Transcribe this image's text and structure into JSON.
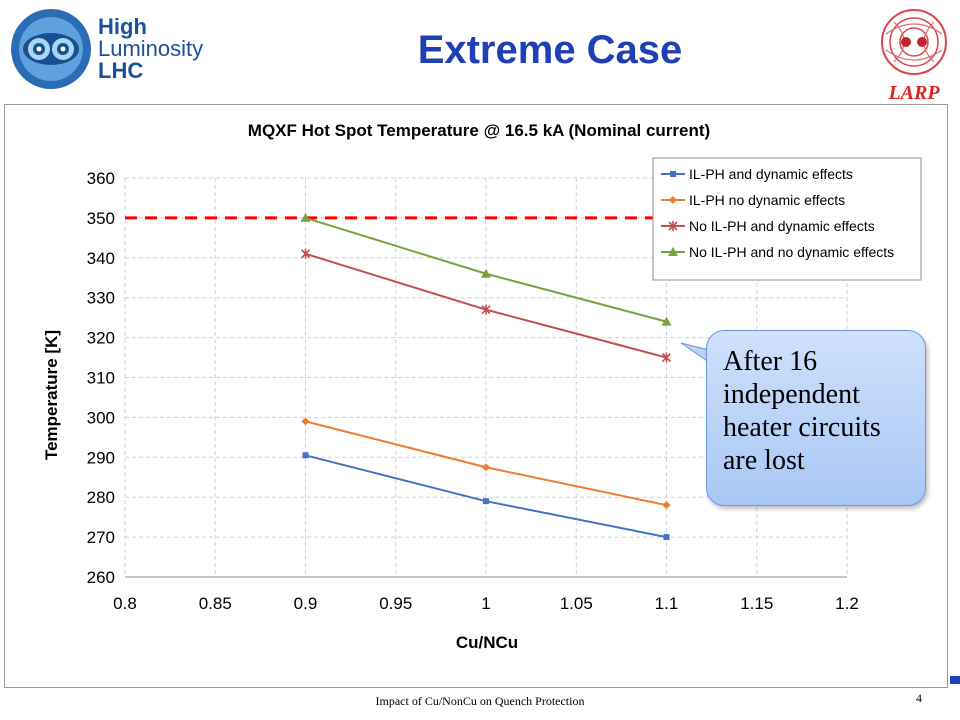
{
  "slide": {
    "title": "Extreme Case",
    "footer": "Impact of Cu/NonCu on Quench Protection",
    "page_number": "4"
  },
  "logos": {
    "hl_lhc": {
      "line1": "High",
      "line2": "Luminosity",
      "line3": "LHC"
    },
    "larp": "LARP"
  },
  "callout": {
    "text": "After 16 independent heater circuits are lost"
  },
  "colors": {
    "title": "#1f3fb5",
    "series": [
      "#4472c4",
      "#ed7d31",
      "#c0504d",
      "#77a33b"
    ],
    "limit_line": "#ff0000",
    "grid": "#c5d3e6"
  },
  "chart_data": {
    "type": "line",
    "title": "MQXF Hot Spot Temperature @ 16.5 kA (Nominal current)",
    "xlabel": "Cu/NCu",
    "ylabel": "Temperature [K]",
    "xlim": [
      0.8,
      1.2
    ],
    "ylim": [
      260,
      360
    ],
    "xticks": [
      "0.8",
      "0.85",
      "0.9",
      "0.95",
      "1",
      "1.05",
      "1.1",
      "1.15",
      "1.2"
    ],
    "yticks": [
      "260",
      "270",
      "280",
      "290",
      "300",
      "310",
      "320",
      "330",
      "340",
      "350",
      "360"
    ],
    "grid": true,
    "legend_position": "top-right",
    "limit_line": {
      "y": 350,
      "style": "dashed",
      "color": "#ff0000"
    },
    "series": [
      {
        "name": "IL-PH and dynamic effects",
        "marker": "square",
        "color": "#4472c4",
        "x": [
          0.9,
          1.0,
          1.1
        ],
        "values": [
          290.5,
          279,
          270
        ]
      },
      {
        "name": "IL-PH no dynamic effects",
        "marker": "diamond",
        "color": "#ed7d31",
        "x": [
          0.9,
          1.0,
          1.1
        ],
        "values": [
          299,
          287.5,
          278
        ]
      },
      {
        "name": "No IL-PH and dynamic effects",
        "marker": "star",
        "color": "#c0504d",
        "x": [
          0.9,
          1.0,
          1.1
        ],
        "values": [
          341,
          327,
          315
        ]
      },
      {
        "name": "No IL-PH and no dynamic effects",
        "marker": "triangle",
        "color": "#77a33b",
        "x": [
          0.9,
          1.0,
          1.1
        ],
        "values": [
          350,
          336,
          324
        ]
      }
    ]
  }
}
